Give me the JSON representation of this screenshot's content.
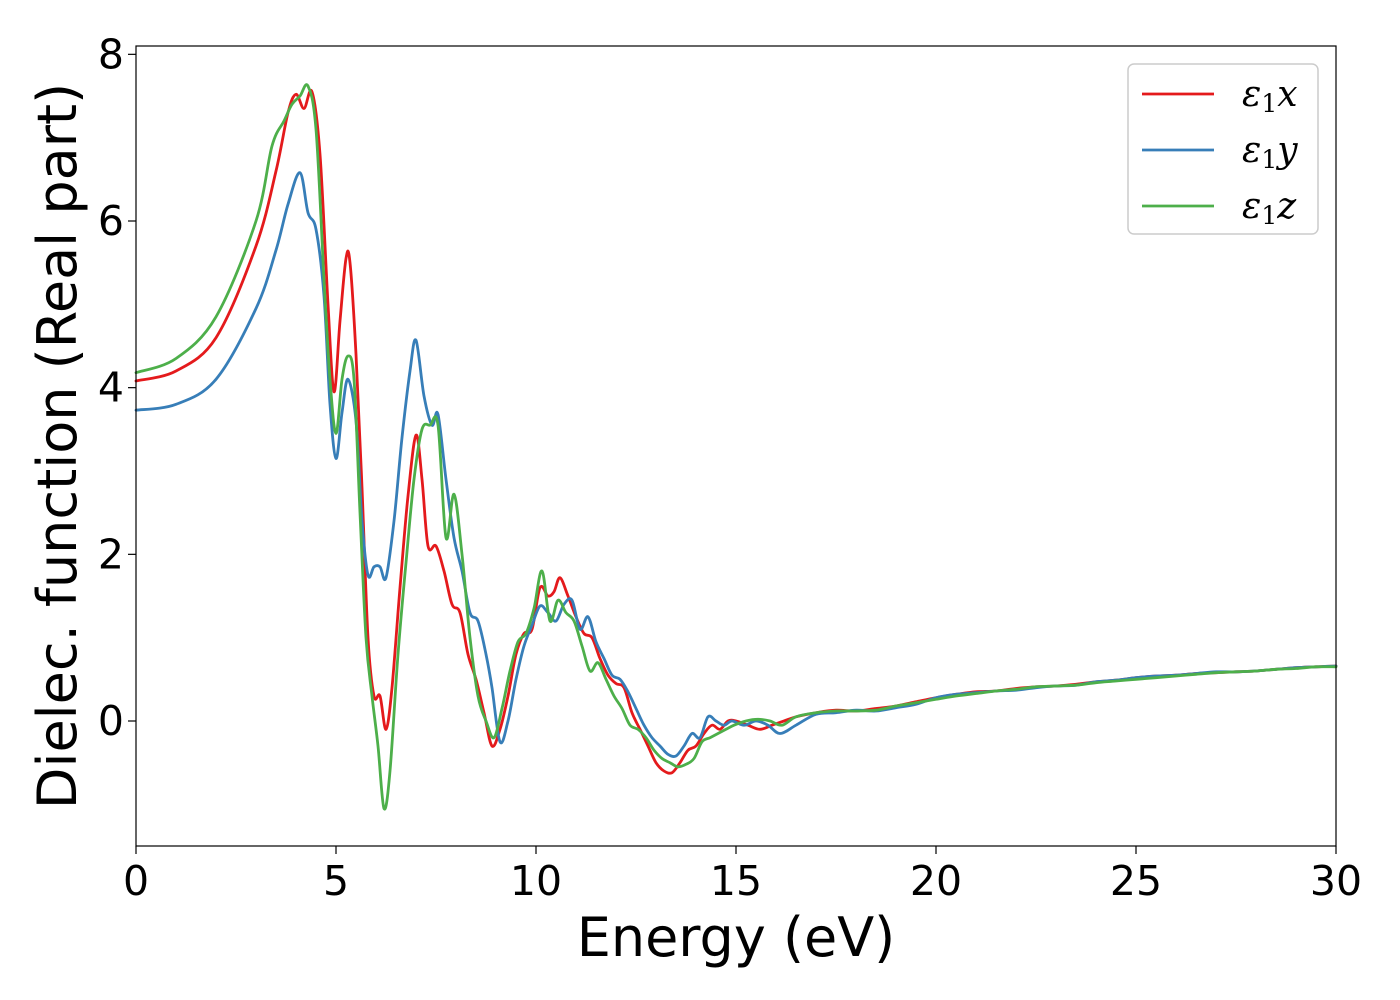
{
  "chart_data": {
    "type": "line",
    "title": "",
    "xlabel": "Energy (eV)",
    "ylabel": "Dielec. function (Real part)",
    "xlim": [
      0,
      30
    ],
    "ylim": [
      -1.5,
      8.1
    ],
    "xticks": [
      0,
      5,
      10,
      15,
      20,
      25,
      30
    ],
    "yticks": [
      0,
      2,
      4,
      6,
      8
    ],
    "grid": false,
    "legend_position": "top-right",
    "series": [
      {
        "name": "ε1x",
        "symbol": "ε",
        "sub": "1",
        "suffix": "x",
        "color": "#e41a1c",
        "x": [
          0,
          1,
          2,
          3,
          3.5,
          3.8,
          4.0,
          4.2,
          4.4,
          4.6,
          4.8,
          4.95,
          5.1,
          5.25,
          5.35,
          5.5,
          5.65,
          5.8,
          5.95,
          6.1,
          6.25,
          6.4,
          6.6,
          6.8,
          7.0,
          7.15,
          7.3,
          7.5,
          7.7,
          7.9,
          8.1,
          8.3,
          8.5,
          8.7,
          8.9,
          9.1,
          9.3,
          9.5,
          9.7,
          9.9,
          10.1,
          10.3,
          10.45,
          10.6,
          10.8,
          11.0,
          11.2,
          11.4,
          11.6,
          11.8,
          12.0,
          12.2,
          12.4,
          12.6,
          12.8,
          13.0,
          13.2,
          13.4,
          13.6,
          13.8,
          14.0,
          14.2,
          14.4,
          14.6,
          14.8,
          15.0,
          15.3,
          15.6,
          15.9,
          16.2,
          16.5,
          17,
          17.5,
          18,
          18.5,
          19,
          19.5,
          20,
          20.5,
          21,
          21.5,
          22,
          22.5,
          23,
          23.5,
          24,
          24.5,
          25,
          25.5,
          26,
          26.5,
          27,
          27.5,
          28,
          28.5,
          29,
          29.5,
          30
        ],
        "y": [
          4.08,
          4.2,
          4.6,
          5.7,
          6.6,
          7.3,
          7.52,
          7.35,
          7.55,
          6.8,
          5.0,
          3.95,
          4.8,
          5.55,
          5.5,
          4.4,
          2.8,
          1.0,
          0.3,
          0.3,
          -0.1,
          0.4,
          1.6,
          2.7,
          3.43,
          2.9,
          2.1,
          2.1,
          1.8,
          1.4,
          1.3,
          0.8,
          0.5,
          0.1,
          -0.3,
          -0.1,
          0.3,
          0.8,
          1.05,
          1.1,
          1.6,
          1.5,
          1.55,
          1.72,
          1.5,
          1.25,
          1.05,
          1.0,
          0.75,
          0.55,
          0.45,
          0.4,
          0.1,
          -0.1,
          -0.3,
          -0.5,
          -0.6,
          -0.62,
          -0.5,
          -0.35,
          -0.3,
          -0.15,
          -0.05,
          -0.1,
          0.0,
          0.0,
          -0.05,
          -0.1,
          -0.05,
          0.0,
          0.05,
          0.1,
          0.13,
          0.12,
          0.15,
          0.18,
          0.23,
          0.28,
          0.32,
          0.35,
          0.36,
          0.39,
          0.41,
          0.42,
          0.44,
          0.47,
          0.49,
          0.52,
          0.54,
          0.55,
          0.57,
          0.58,
          0.59,
          0.6,
          0.62,
          0.64,
          0.65,
          0.66
        ]
      },
      {
        "name": "ε1y",
        "symbol": "ε",
        "sub": "1",
        "suffix": "y",
        "color": "#377eb8",
        "x": [
          0,
          1,
          2,
          3,
          3.5,
          3.8,
          4.1,
          4.3,
          4.5,
          4.7,
          4.85,
          5.0,
          5.15,
          5.3,
          5.5,
          5.65,
          5.8,
          5.95,
          6.1,
          6.25,
          6.45,
          6.65,
          6.85,
          7.0,
          7.2,
          7.4,
          7.55,
          7.75,
          7.95,
          8.15,
          8.35,
          8.55,
          8.75,
          8.9,
          9.1,
          9.3,
          9.5,
          9.7,
          9.9,
          10.1,
          10.3,
          10.5,
          10.7,
          10.9,
          11.1,
          11.3,
          11.5,
          11.7,
          11.9,
          12.1,
          12.3,
          12.5,
          12.7,
          12.9,
          13.1,
          13.3,
          13.5,
          13.7,
          13.9,
          14.1,
          14.3,
          14.5,
          14.7,
          14.9,
          15.2,
          15.5,
          15.8,
          16.1,
          16.5,
          17,
          17.5,
          18,
          18.5,
          19,
          19.5,
          20,
          20.5,
          21,
          21.5,
          22,
          22.5,
          23,
          23.5,
          24,
          24.5,
          25,
          25.5,
          26,
          26.5,
          27,
          27.5,
          28,
          28.5,
          29,
          29.5,
          30
        ],
        "y": [
          3.73,
          3.8,
          4.1,
          4.95,
          5.65,
          6.2,
          6.58,
          6.1,
          5.9,
          5.1,
          3.8,
          3.15,
          3.7,
          4.1,
          3.6,
          2.4,
          1.75,
          1.85,
          1.85,
          1.72,
          2.4,
          3.4,
          4.2,
          4.57,
          3.9,
          3.55,
          3.68,
          2.9,
          2.2,
          1.8,
          1.3,
          1.2,
          0.8,
          0.4,
          -0.25,
          0.0,
          0.5,
          0.9,
          1.15,
          1.38,
          1.3,
          1.2,
          1.4,
          1.45,
          1.1,
          1.25,
          0.95,
          0.75,
          0.55,
          0.5,
          0.35,
          0.15,
          -0.05,
          -0.2,
          -0.3,
          -0.4,
          -0.42,
          -0.3,
          -0.15,
          -0.2,
          0.05,
          0.0,
          -0.05,
          0.0,
          -0.05,
          0.0,
          -0.05,
          -0.15,
          -0.05,
          0.08,
          0.1,
          0.13,
          0.12,
          0.16,
          0.2,
          0.28,
          0.32,
          0.34,
          0.36,
          0.37,
          0.4,
          0.42,
          0.43,
          0.47,
          0.49,
          0.52,
          0.54,
          0.55,
          0.57,
          0.59,
          0.59,
          0.6,
          0.62,
          0.64,
          0.65,
          0.66
        ]
      },
      {
        "name": "ε1z",
        "symbol": "ε",
        "sub": "1",
        "suffix": "z",
        "color": "#4daf4a",
        "x": [
          0,
          1,
          2,
          3,
          3.4,
          3.7,
          3.9,
          4.1,
          4.3,
          4.5,
          4.7,
          4.85,
          5.0,
          5.15,
          5.3,
          5.45,
          5.6,
          5.75,
          5.9,
          6.05,
          6.2,
          6.35,
          6.55,
          6.75,
          6.95,
          7.15,
          7.35,
          7.55,
          7.75,
          7.95,
          8.15,
          8.35,
          8.55,
          8.75,
          8.95,
          9.15,
          9.35,
          9.55,
          9.75,
          9.95,
          10.15,
          10.35,
          10.55,
          10.75,
          10.95,
          11.15,
          11.35,
          11.55,
          11.75,
          11.95,
          12.15,
          12.35,
          12.55,
          12.75,
          12.95,
          13.15,
          13.35,
          13.55,
          13.75,
          13.95,
          14.15,
          14.35,
          14.55,
          14.75,
          14.95,
          15.25,
          15.55,
          15.85,
          16.15,
          16.5,
          17,
          17.5,
          18,
          18.5,
          19,
          19.5,
          20,
          20.5,
          21,
          21.5,
          22,
          22.5,
          23,
          23.5,
          24,
          24.5,
          25,
          25.5,
          26,
          26.5,
          27,
          27.5,
          28,
          28.5,
          29,
          29.5,
          30
        ],
        "y": [
          4.18,
          4.35,
          4.85,
          6.0,
          6.9,
          7.2,
          7.4,
          7.5,
          7.62,
          7.1,
          5.3,
          4.1,
          3.45,
          4.1,
          4.38,
          4.1,
          2.5,
          1.0,
          0.3,
          -0.3,
          -1.05,
          -0.6,
          0.8,
          1.9,
          2.9,
          3.5,
          3.55,
          3.55,
          2.2,
          2.72,
          2.0,
          1.0,
          0.3,
          0.0,
          -0.2,
          0.15,
          0.6,
          0.95,
          1.05,
          1.35,
          1.8,
          1.2,
          1.45,
          1.3,
          1.2,
          0.9,
          0.6,
          0.7,
          0.5,
          0.3,
          0.15,
          -0.05,
          -0.1,
          -0.2,
          -0.35,
          -0.45,
          -0.5,
          -0.55,
          -0.52,
          -0.45,
          -0.25,
          -0.2,
          -0.15,
          -0.1,
          -0.05,
          0.0,
          0.02,
          0.0,
          -0.05,
          0.05,
          0.1,
          0.12,
          0.12,
          0.13,
          0.18,
          0.22,
          0.26,
          0.3,
          0.33,
          0.36,
          0.38,
          0.41,
          0.42,
          0.43,
          0.46,
          0.48,
          0.5,
          0.52,
          0.54,
          0.56,
          0.58,
          0.59,
          0.6,
          0.62,
          0.63,
          0.65,
          0.65
        ]
      }
    ]
  }
}
